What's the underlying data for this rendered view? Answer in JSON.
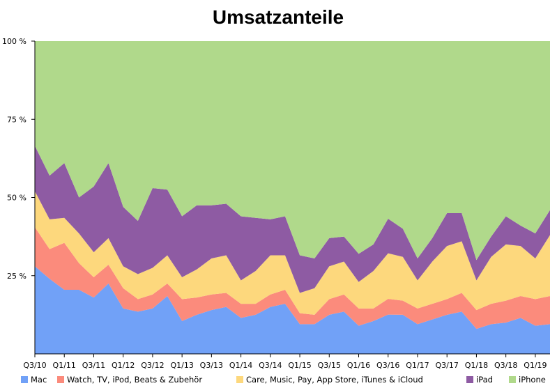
{
  "chart_data": {
    "type": "area",
    "stacked": true,
    "normalized": true,
    "title": "Umsatzanteile",
    "xlabel": "",
    "ylabel": "",
    "ylim": [
      0,
      100
    ],
    "yticks": [
      {
        "value": 25,
        "label": "25 %"
      },
      {
        "value": 50,
        "label": "50 %"
      },
      {
        "value": 75,
        "label": "75 %"
      },
      {
        "value": 100,
        "label": "100 %"
      }
    ],
    "x": [
      "Q3/10",
      "Q4/10",
      "Q1/11",
      "Q2/11",
      "Q3/11",
      "Q4/11",
      "Q1/12",
      "Q2/12",
      "Q3/12",
      "Q4/12",
      "Q1/13",
      "Q2/13",
      "Q3/13",
      "Q4/13",
      "Q1/14",
      "Q2/14",
      "Q3/14",
      "Q4/14",
      "Q1/15",
      "Q2/15",
      "Q3/15",
      "Q4/15",
      "Q1/16",
      "Q2/16",
      "Q3/16",
      "Q4/16",
      "Q1/17",
      "Q2/17",
      "Q3/17",
      "Q4/17",
      "Q1/18",
      "Q2/18",
      "Q3/18",
      "Q4/18",
      "Q1/19",
      "Q2/19"
    ],
    "xticks": [
      "Q3/10",
      "Q1/11",
      "Q3/11",
      "Q1/12",
      "Q3/12",
      "Q1/13",
      "Q3/13",
      "Q1/14",
      "Q3/14",
      "Q1/15",
      "Q3/15",
      "Q1/16",
      "Q3/16",
      "Q1/17",
      "Q3/17",
      "Q1/18",
      "Q3/18",
      "Q1/19"
    ],
    "series": [
      {
        "name": "Mac",
        "color": "#71a1f7",
        "values": [
          28,
          24,
          20.5,
          20.5,
          18,
          22.5,
          14.5,
          13.5,
          14.5,
          18.5,
          10.5,
          12.5,
          14,
          15,
          11.5,
          12.5,
          15,
          16,
          9.5,
          9.5,
          12.5,
          13.5,
          9,
          10.5,
          12.5,
          12.5,
          9.5,
          11,
          12.5,
          13.5,
          8,
          9.5,
          10,
          11.5,
          9,
          9.5
        ]
      },
      {
        "name": " Watch,  TV, iPod, Beats & Zubehör",
        "color": "#fb8b7c",
        "values": [
          12.5,
          9.5,
          15,
          8.5,
          6.5,
          6,
          6.5,
          4,
          4.5,
          4,
          7,
          5.5,
          5,
          4.5,
          4.5,
          3.5,
          4,
          4.5,
          3.5,
          3,
          5,
          5.5,
          5.5,
          4,
          5,
          4.5,
          5,
          5,
          5,
          6,
          6,
          6.5,
          7,
          7,
          8.5,
          9
        ]
      },
      {
        "name": "Care,  Music,  Pay, App Store, iTunes & iCloud",
        "color": "#fdd87d",
        "values": [
          11.5,
          9.5,
          8,
          9.5,
          8,
          8.5,
          7,
          8,
          8.5,
          9,
          7,
          9,
          11.5,
          12,
          7.5,
          10.5,
          12.5,
          11,
          6.5,
          8.5,
          10.5,
          10.5,
          8.5,
          12,
          14.5,
          14,
          9,
          13.5,
          17,
          16.5,
          9.5,
          15,
          18,
          16,
          13,
          19.5
        ]
      },
      {
        "name": "iPad",
        "color": "#8e5ba3",
        "values": [
          14.5,
          14,
          17.5,
          11.5,
          21,
          24,
          19,
          17,
          25.5,
          21,
          19.5,
          20.5,
          17,
          16.5,
          20.5,
          17,
          11.5,
          12.5,
          12,
          9.5,
          9,
          8,
          9,
          8.5,
          11,
          9,
          7,
          7.5,
          10.5,
          9,
          6.5,
          6.5,
          9,
          6.5,
          8,
          8
        ]
      },
      {
        "name": "iPhone",
        "color": "#b0d98b",
        "values": [
          33.5,
          43,
          39,
          50,
          46.5,
          39,
          53,
          57.5,
          47,
          47.5,
          56,
          52.5,
          52.5,
          52,
          56,
          56.5,
          57,
          56,
          68.5,
          69.5,
          63,
          62.5,
          68,
          65,
          56.5,
          60,
          69.5,
          63,
          55,
          55,
          70,
          62.5,
          56,
          59,
          61.5,
          54
        ]
      }
    ],
    "legend_position": "bottom"
  }
}
